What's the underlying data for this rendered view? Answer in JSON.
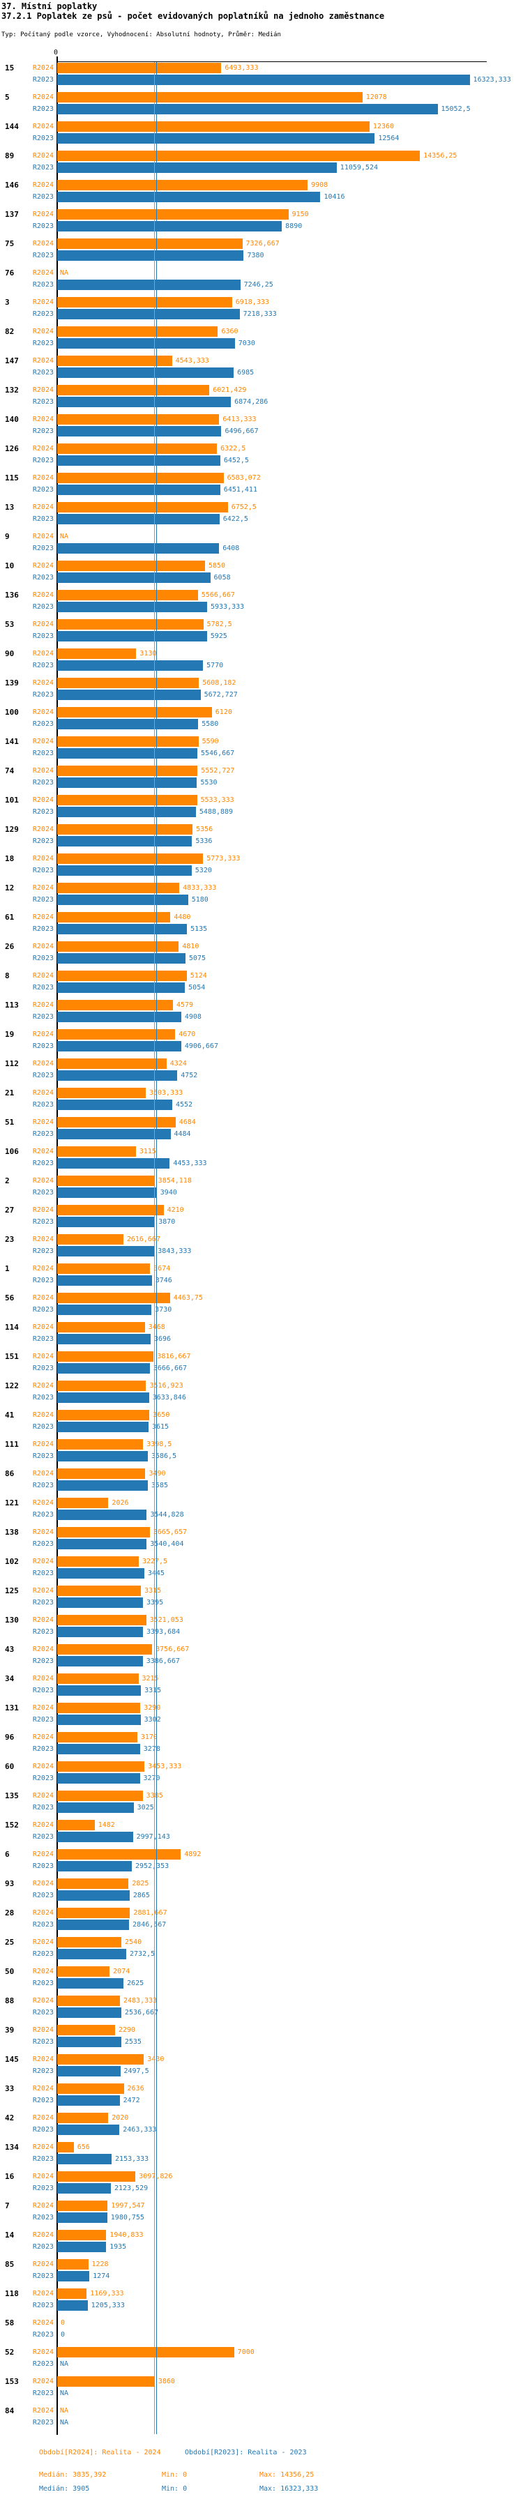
{
  "header": {
    "title": "37. Místní poplatky",
    "subtitle": "37.2.1 Poplatek ze psů - počet evidovaných poplatníků na jednoho zaměstnance",
    "meta": "Typ: Počítaný podle vzorce, Vyhodnocení: Absolutní hodnoty, Průměr: Medián"
  },
  "axis": {
    "zero_label": "0"
  },
  "colors": {
    "r2024": "#ff8600",
    "r2023": "#2478b4"
  },
  "chart_data": {
    "type": "bar",
    "orientation": "horizontal",
    "xlabel": "",
    "ylabel": "",
    "xlim": [
      0,
      17000
    ],
    "grid": false,
    "series": [
      {
        "key": "r2024",
        "name": "R2024",
        "label": "Realita - 2024",
        "color": "#ff8600",
        "median": 3835.392,
        "min": 0,
        "max": 14356.25
      },
      {
        "key": "r2023",
        "name": "R2023",
        "label": "Realita - 2023",
        "color": "#2478b4",
        "median": 3905,
        "min": 0,
        "max": 16323.333
      }
    ],
    "rows": [
      {
        "id": "15",
        "r2024": "6493,333",
        "r2023": "16323,333"
      },
      {
        "id": "5",
        "r2024": "12078",
        "r2023": "15052,5"
      },
      {
        "id": "144",
        "r2024": "12360",
        "r2023": "12564"
      },
      {
        "id": "89",
        "r2024": "14356,25",
        "r2023": "11059,524"
      },
      {
        "id": "146",
        "r2024": "9908",
        "r2023": "10416"
      },
      {
        "id": "137",
        "r2024": "9150",
        "r2023": "8890"
      },
      {
        "id": "75",
        "r2024": "7326,667",
        "r2023": "7380"
      },
      {
        "id": "76",
        "r2024": "NA",
        "r2023": "7246,25"
      },
      {
        "id": "3",
        "r2024": "6918,333",
        "r2023": "7218,333"
      },
      {
        "id": "82",
        "r2024": "6360",
        "r2023": "7030"
      },
      {
        "id": "147",
        "r2024": "4543,333",
        "r2023": "6985"
      },
      {
        "id": "132",
        "r2024": "6021,429",
        "r2023": "6874,286"
      },
      {
        "id": "140",
        "r2024": "6413,333",
        "r2023": "6496,667"
      },
      {
        "id": "126",
        "r2024": "6322,5",
        "r2023": "6452,5"
      },
      {
        "id": "115",
        "r2024": "6583,072",
        "r2023": "6451,411"
      },
      {
        "id": "13",
        "r2024": "6752,5",
        "r2023": "6422,5"
      },
      {
        "id": "9",
        "r2024": "NA",
        "r2023": "6408"
      },
      {
        "id": "10",
        "r2024": "5850",
        "r2023": "6058"
      },
      {
        "id": "136",
        "r2024": "5566,667",
        "r2023": "5933,333"
      },
      {
        "id": "53",
        "r2024": "5782,5",
        "r2023": "5925"
      },
      {
        "id": "90",
        "r2024": "3130",
        "r2023": "5770"
      },
      {
        "id": "139",
        "r2024": "5608,182",
        "r2023": "5672,727"
      },
      {
        "id": "100",
        "r2024": "6120",
        "r2023": "5580"
      },
      {
        "id": "141",
        "r2024": "5590",
        "r2023": "5546,667"
      },
      {
        "id": "74",
        "r2024": "5552,727",
        "r2023": "5530"
      },
      {
        "id": "101",
        "r2024": "5533,333",
        "r2023": "5488,889"
      },
      {
        "id": "129",
        "r2024": "5356",
        "r2023": "5336"
      },
      {
        "id": "18",
        "r2024": "5773,333",
        "r2023": "5320"
      },
      {
        "id": "12",
        "r2024": "4833,333",
        "r2023": "5180"
      },
      {
        "id": "61",
        "r2024": "4480",
        "r2023": "5135"
      },
      {
        "id": "26",
        "r2024": "4810",
        "r2023": "5075"
      },
      {
        "id": "8",
        "r2024": "5124",
        "r2023": "5054"
      },
      {
        "id": "113",
        "r2024": "4579",
        "r2023": "4908"
      },
      {
        "id": "19",
        "r2024": "4670",
        "r2023": "4906,667"
      },
      {
        "id": "112",
        "r2024": "4324",
        "r2023": "4752"
      },
      {
        "id": "21",
        "r2024": "3503,333",
        "r2023": "4552"
      },
      {
        "id": "51",
        "r2024": "4684",
        "r2023": "4484"
      },
      {
        "id": "106",
        "r2024": "3115",
        "r2023": "4453,333"
      },
      {
        "id": "2",
        "r2024": "3854,118",
        "r2023": "3940"
      },
      {
        "id": "27",
        "r2024": "4210",
        "r2023": "3870"
      },
      {
        "id": "23",
        "r2024": "2616,667",
        "r2023": "3843,333"
      },
      {
        "id": "1",
        "r2024": "3674",
        "r2023": "3746"
      },
      {
        "id": "56",
        "r2024": "4463,75",
        "r2023": "3730"
      },
      {
        "id": "114",
        "r2024": "3468",
        "r2023": "3696"
      },
      {
        "id": "151",
        "r2024": "3816,667",
        "r2023": "3666,667"
      },
      {
        "id": "122",
        "r2024": "3516,923",
        "r2023": "3633,846"
      },
      {
        "id": "41",
        "r2024": "3650",
        "r2023": "3615"
      },
      {
        "id": "111",
        "r2024": "3398,5",
        "r2023": "3586,5"
      },
      {
        "id": "86",
        "r2024": "3490",
        "r2023": "3585"
      },
      {
        "id": "121",
        "r2024": "2026",
        "r2023": "3544,828"
      },
      {
        "id": "138",
        "r2024": "3665,657",
        "r2023": "3540,404"
      },
      {
        "id": "102",
        "r2024": "3227,5",
        "r2023": "3445"
      },
      {
        "id": "125",
        "r2024": "3315",
        "r2023": "3395"
      },
      {
        "id": "130",
        "r2024": "3521,053",
        "r2023": "3393,684"
      },
      {
        "id": "43",
        "r2024": "3756,667",
        "r2023": "3386,667"
      },
      {
        "id": "34",
        "r2024": "3215",
        "r2023": "3315"
      },
      {
        "id": "131",
        "r2024": "3290",
        "r2023": "3302"
      },
      {
        "id": "96",
        "r2024": "3170",
        "r2023": "3278"
      },
      {
        "id": "60",
        "r2024": "3453,333",
        "r2023": "3270"
      },
      {
        "id": "135",
        "r2024": "3385",
        "r2023": "3025"
      },
      {
        "id": "152",
        "r2024": "1482",
        "r2023": "2997,143"
      },
      {
        "id": "6",
        "r2024": "4892",
        "r2023": "2952,353"
      },
      {
        "id": "93",
        "r2024": "2825",
        "r2023": "2865"
      },
      {
        "id": "28",
        "r2024": "2881,667",
        "r2023": "2846,667"
      },
      {
        "id": "25",
        "r2024": "2540",
        "r2023": "2732,5"
      },
      {
        "id": "50",
        "r2024": "2074",
        "r2023": "2625"
      },
      {
        "id": "88",
        "r2024": "2483,333",
        "r2023": "2536,667"
      },
      {
        "id": "39",
        "r2024": "2290",
        "r2023": "2535"
      },
      {
        "id": "145",
        "r2024": "3430",
        "r2023": "2497,5"
      },
      {
        "id": "33",
        "r2024": "2636",
        "r2023": "2472"
      },
      {
        "id": "42",
        "r2024": "2020",
        "r2023": "2463,333"
      },
      {
        "id": "134",
        "r2024": "656",
        "r2023": "2153,333"
      },
      {
        "id": "16",
        "r2024": "3097,826",
        "r2023": "2123,529"
      },
      {
        "id": "7",
        "r2024": "1997,547",
        "r2023": "1980,755"
      },
      {
        "id": "14",
        "r2024": "1940,833",
        "r2023": "1935"
      },
      {
        "id": "85",
        "r2024": "1228",
        "r2023": "1274"
      },
      {
        "id": "118",
        "r2024": "1169,333",
        "r2023": "1205,333"
      },
      {
        "id": "58",
        "r2024": "0",
        "r2023": "0"
      },
      {
        "id": "52",
        "r2024": "7000",
        "r2023": "NA"
      },
      {
        "id": "153",
        "r2024": "3860",
        "r2023": "NA"
      },
      {
        "id": "84",
        "r2024": "NA",
        "r2023": "NA"
      }
    ]
  },
  "legend": {
    "period_2024": "Období[R2024]: Realita - 2024",
    "period_2023": "Období[R2023]: Realita - 2023",
    "median_2024": "Medián: 3835,392",
    "min_2024": "Min: 0",
    "max_2024": "Max: 14356,25",
    "median_2023": "Medián: 3905",
    "min_2023": "Min: 0",
    "max_2023": "Max: 16323,333"
  }
}
